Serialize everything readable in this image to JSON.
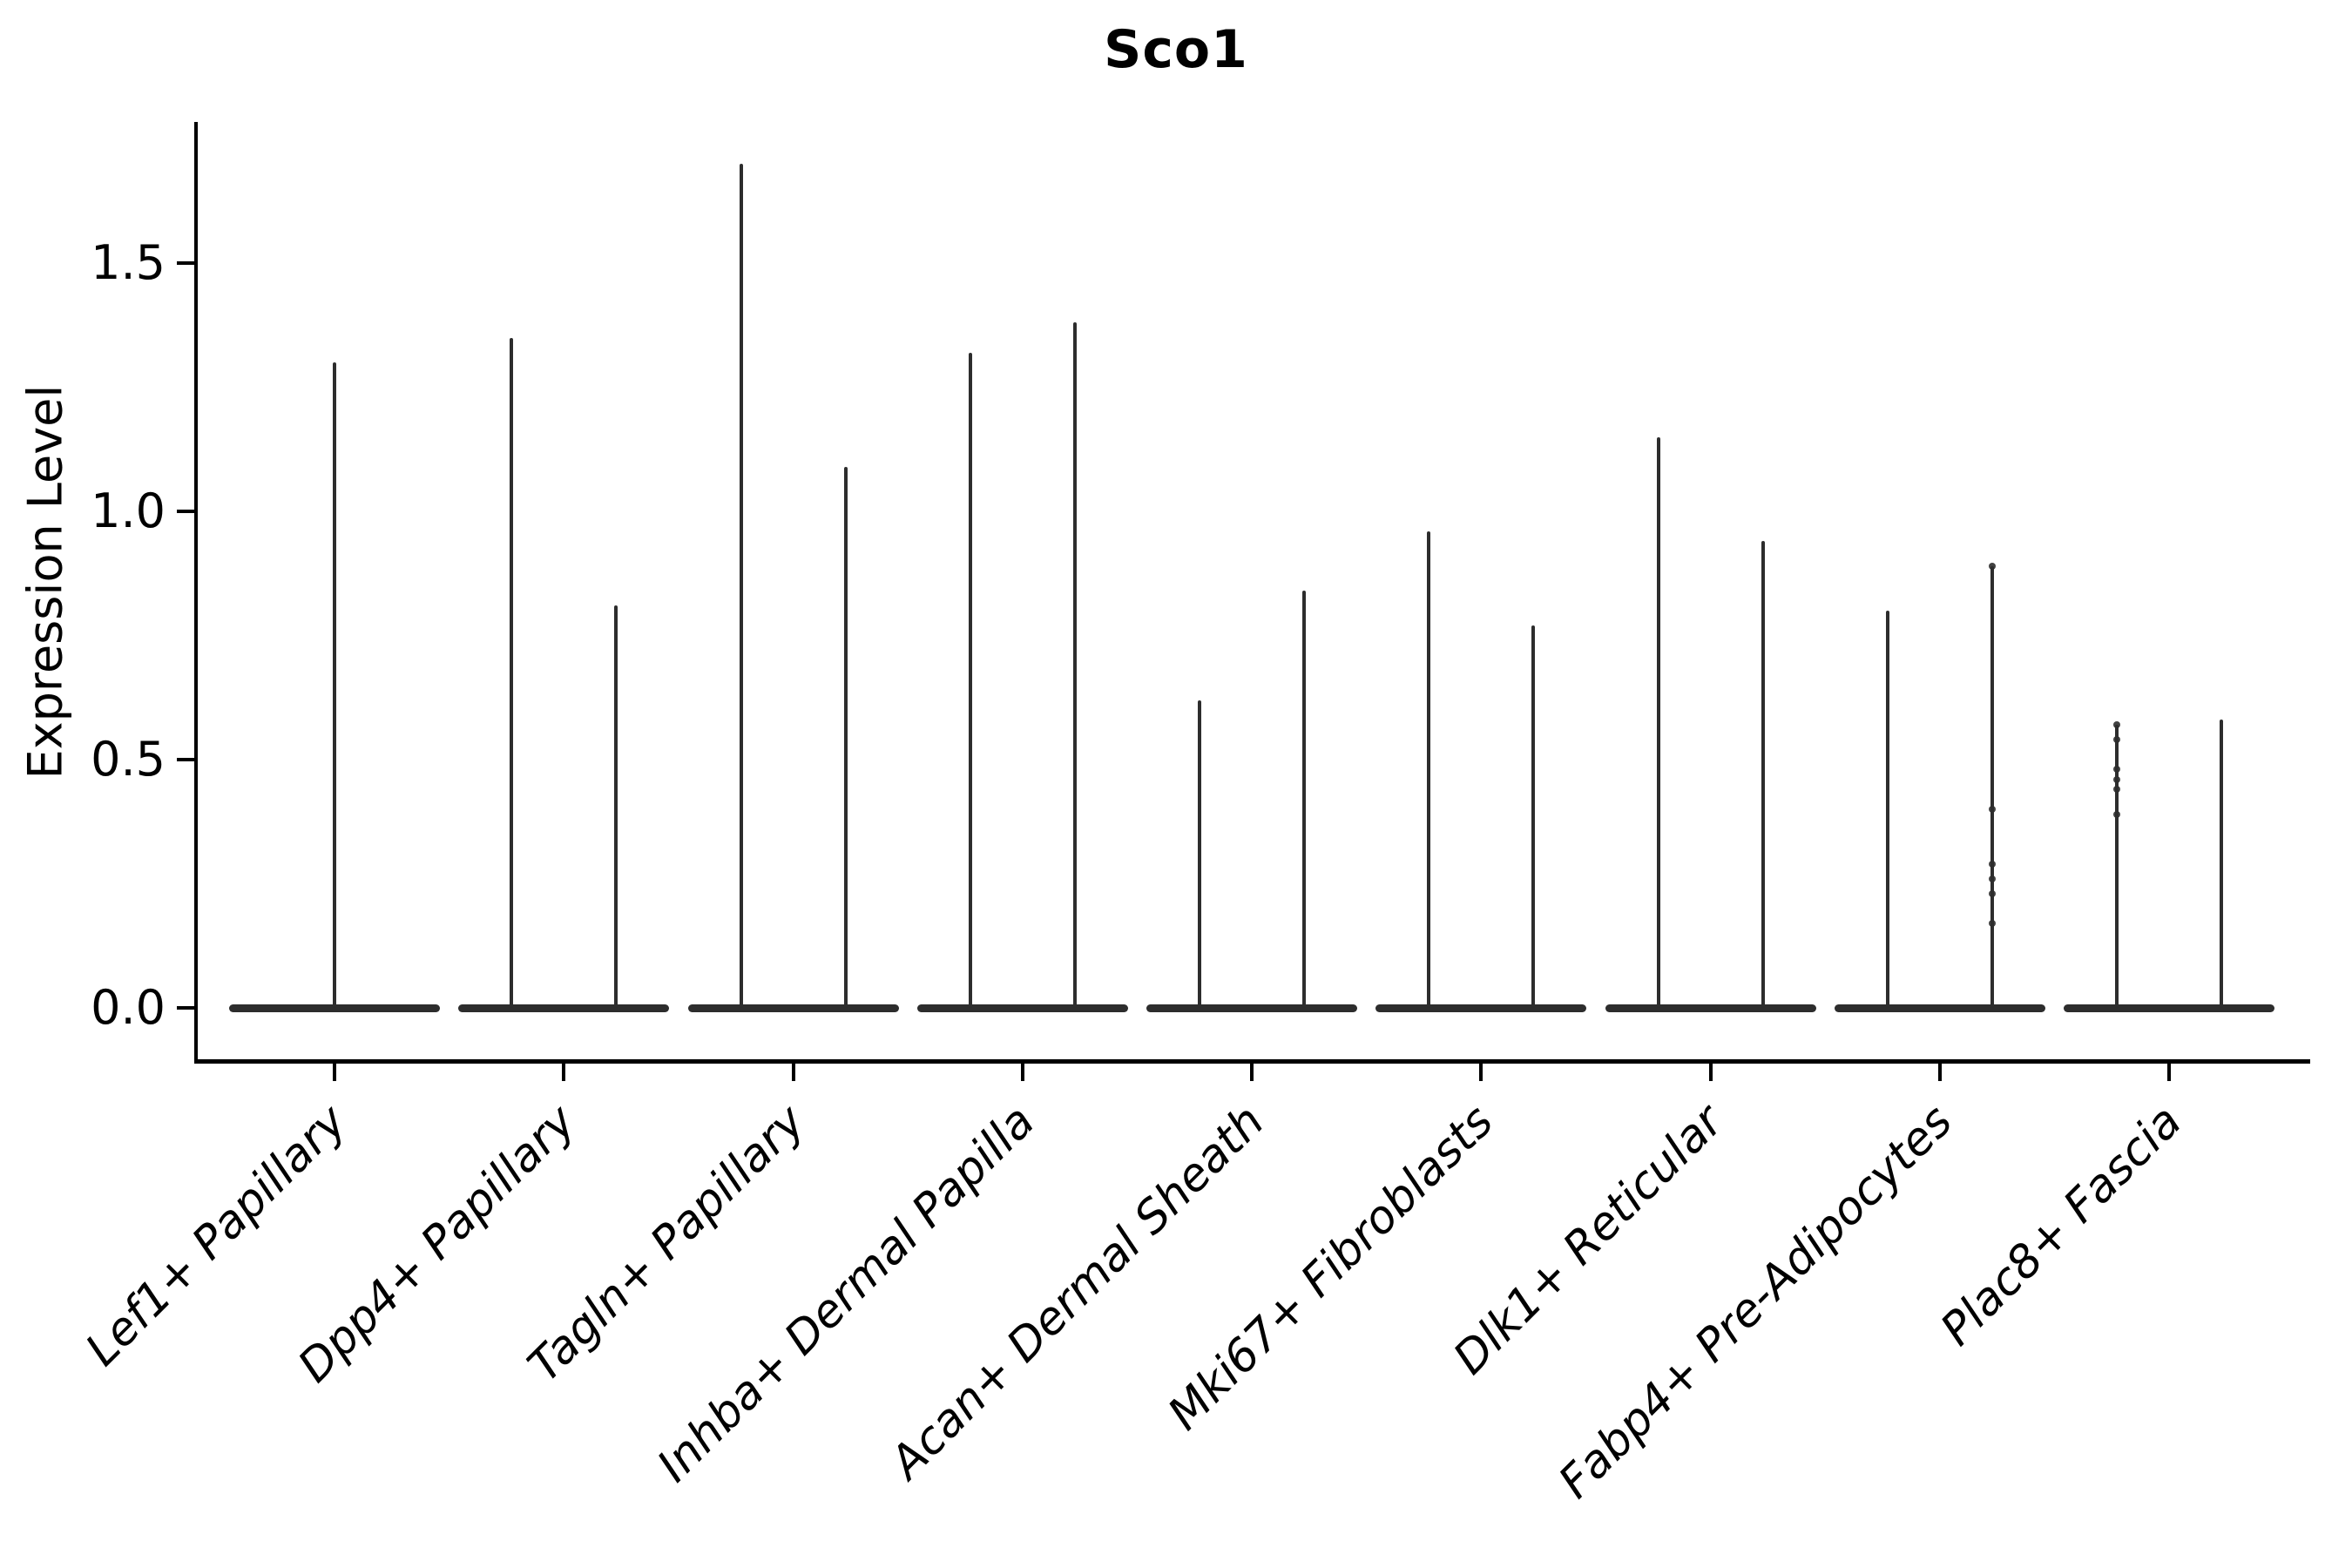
{
  "figure": {
    "title": "Sco1",
    "ylabel": "Expression Level"
  },
  "axis": {
    "ytick_labels": [
      "0.0",
      "0.5",
      "1.0",
      "1.5"
    ],
    "ytick_values": [
      0.0,
      0.5,
      1.0,
      1.5
    ]
  },
  "theme": {
    "violin_color": "#2d2d2d",
    "axis_color": "#000000",
    "text_color": "#000000",
    "background": "#ffffff"
  },
  "chart_data": {
    "type": "violin",
    "title": "Sco1",
    "xlabel": "",
    "ylabel": "Expression Level",
    "ylim": [
      -0.06,
      1.78
    ],
    "yticks": [
      0.0,
      0.5,
      1.0,
      1.5
    ],
    "grid": false,
    "legend_position": "none",
    "description": "Single-cell expression violin plot; each category shows a wide flat density bar at 0 with thin spikes reaching the maximum expression of each violin.",
    "categories": [
      "Lef1+ Papillary",
      "Dpp4+ Papillary",
      "Tagln+ Papillary",
      "Inhba+ Dermal Papilla",
      "Acan+ Dermal Sheath",
      "Mki67+ Fibroblasts",
      "Dlk1+ Reticular",
      "Fabp4+ Pre-Adipocytes",
      "Plac8+ Fascia"
    ],
    "violins": [
      {
        "category": "Lef1+ Papillary",
        "baseline_density_at_zero": true,
        "spikes": [
          {
            "pos": "center",
            "max": 1.3,
            "points": []
          }
        ]
      },
      {
        "category": "Dpp4+ Papillary",
        "baseline_density_at_zero": true,
        "spikes": [
          {
            "pos": "left",
            "max": 1.35,
            "points": []
          },
          {
            "pos": "right",
            "max": 0.81,
            "points": []
          }
        ]
      },
      {
        "category": "Tagln+ Papillary",
        "baseline_density_at_zero": true,
        "spikes": [
          {
            "pos": "left",
            "max": 1.7,
            "points": []
          },
          {
            "pos": "right",
            "max": 1.09,
            "points": []
          }
        ]
      },
      {
        "category": "Inhba+ Dermal Papilla",
        "baseline_density_at_zero": true,
        "spikes": [
          {
            "pos": "left",
            "max": 1.32,
            "points": []
          },
          {
            "pos": "right",
            "max": 1.38,
            "points": []
          }
        ]
      },
      {
        "category": "Acan+ Dermal Sheath",
        "baseline_density_at_zero": true,
        "spikes": [
          {
            "pos": "left",
            "max": 0.62,
            "points": []
          },
          {
            "pos": "right",
            "max": 0.84,
            "points": []
          }
        ]
      },
      {
        "category": "Mki67+ Fibroblasts",
        "baseline_density_at_zero": true,
        "spikes": [
          {
            "pos": "left",
            "max": 0.96,
            "points": []
          },
          {
            "pos": "right",
            "max": 0.77,
            "points": []
          }
        ]
      },
      {
        "category": "Dlk1+ Reticular",
        "baseline_density_at_zero": true,
        "spikes": [
          {
            "pos": "left",
            "max": 1.15,
            "points": []
          },
          {
            "pos": "right",
            "max": 0.94,
            "points": []
          }
        ]
      },
      {
        "category": "Fabp4+ Pre-Adipocytes",
        "baseline_density_at_zero": true,
        "spikes": [
          {
            "pos": "left",
            "max": 0.8,
            "points": []
          },
          {
            "pos": "right",
            "max": 0.89,
            "points": [
              0.89,
              0.4,
              0.29,
              0.26,
              0.23,
              0.17
            ]
          }
        ]
      },
      {
        "category": "Plac8+ Fascia",
        "baseline_density_at_zero": true,
        "spikes": [
          {
            "pos": "left",
            "max": 0.57,
            "points": [
              0.57,
              0.54,
              0.48,
              0.46,
              0.44,
              0.39
            ]
          },
          {
            "pos": "right",
            "max": 0.58,
            "points": []
          }
        ]
      }
    ]
  }
}
